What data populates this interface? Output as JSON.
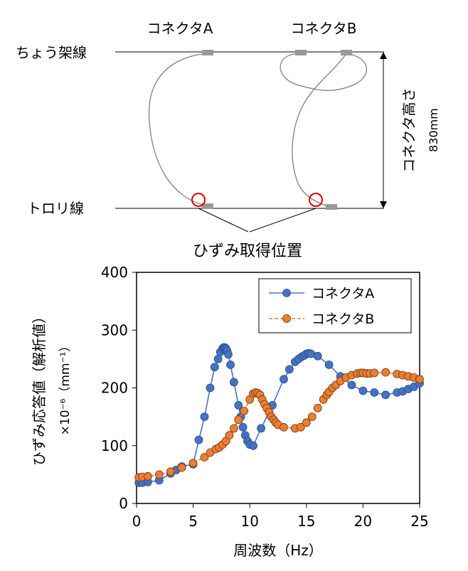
{
  "diagram": {
    "connector_a_label": "コネクタA",
    "connector_b_label": "コネクタB",
    "catenary_label": "ちょう架線",
    "trolley_label": "トロリ線",
    "height_label": "コネクタ高さ",
    "height_value": "830mm",
    "strain_position_label": "ひずみ取得位置"
  },
  "chart_data": {
    "type": "line",
    "xlabel": "周波数（Hz）",
    "ylabel_line1": "ひずみ応答値（解析値）",
    "ylabel_line2": "×10⁻⁶（mm⁻¹）",
    "xlim": [
      0,
      25
    ],
    "ylim": [
      0,
      400
    ],
    "x_ticks": [
      "0",
      "5",
      "10",
      "15",
      "20",
      "25"
    ],
    "y_ticks": [
      "0",
      "100",
      "200",
      "300",
      "400"
    ],
    "grid": false,
    "legend_position": "top-right",
    "series": [
      {
        "name": "コネクタA",
        "color": "#4472C4",
        "line_style": "solid",
        "x": [
          0.2,
          0.5,
          1.0,
          2.0,
          3.0,
          3.5,
          4.0,
          5.0,
          5.5,
          6.0,
          6.5,
          6.9,
          7.2,
          7.4,
          7.6,
          7.7,
          7.8,
          7.9,
          8.0,
          8.1,
          8.3,
          8.6,
          9.0,
          9.2,
          9.4,
          9.6,
          9.8,
          10.0,
          10.3,
          11.0,
          12.0,
          13.0,
          13.5,
          14.0,
          14.3,
          14.6,
          14.8,
          15.0,
          15.2,
          15.4,
          16.0,
          17.0,
          18.0,
          19.0,
          20.0,
          21.0,
          22.0,
          23.0,
          23.5,
          24.0,
          24.5,
          25.0
        ],
        "y": [
          36,
          36,
          37,
          40,
          52,
          58,
          64,
          68,
          110,
          150,
          200,
          236,
          250,
          262,
          268,
          270,
          270,
          268,
          264,
          258,
          240,
          210,
          170,
          150,
          132,
          118,
          108,
          102,
          100,
          130,
          170,
          215,
          232,
          245,
          250,
          254,
          256,
          259,
          260,
          259,
          255,
          240,
          220,
          205,
          195,
          192,
          188,
          192,
          194,
          198,
          202,
          208
        ]
      },
      {
        "name": "コネクタB",
        "color": "#ED7D31",
        "line_style": "dashed",
        "x": [
          0.2,
          0.5,
          1.0,
          2.0,
          3.0,
          4.0,
          5.0,
          6.0,
          6.5,
          7.0,
          7.3,
          7.6,
          7.9,
          8.2,
          8.6,
          9.0,
          9.5,
          10.0,
          10.3,
          10.5,
          10.7,
          10.9,
          11.1,
          11.3,
          11.5,
          11.7,
          11.9,
          12.1,
          12.3,
          12.5,
          13.0,
          14.0,
          14.5,
          15.0,
          15.5,
          16.0,
          16.5,
          16.8,
          17.0,
          17.3,
          17.6,
          18.0,
          18.5,
          19.0,
          19.5,
          19.8,
          20.0,
          20.3,
          20.6,
          21.0,
          22.0,
          23.0,
          23.5,
          24.0,
          24.5,
          25.0
        ],
        "y": [
          45,
          46,
          47,
          50,
          55,
          62,
          70,
          80,
          88,
          94,
          97,
          102,
          108,
          118,
          130,
          145,
          160,
          180,
          190,
          192,
          191,
          188,
          180,
          172,
          165,
          158,
          150,
          145,
          140,
          136,
          132,
          130,
          132,
          140,
          150,
          165,
          180,
          188,
          193,
          200,
          205,
          212,
          218,
          222,
          225,
          226,
          226,
          225,
          225,
          226,
          227,
          224,
          222,
          220,
          218,
          215
        ]
      }
    ]
  }
}
